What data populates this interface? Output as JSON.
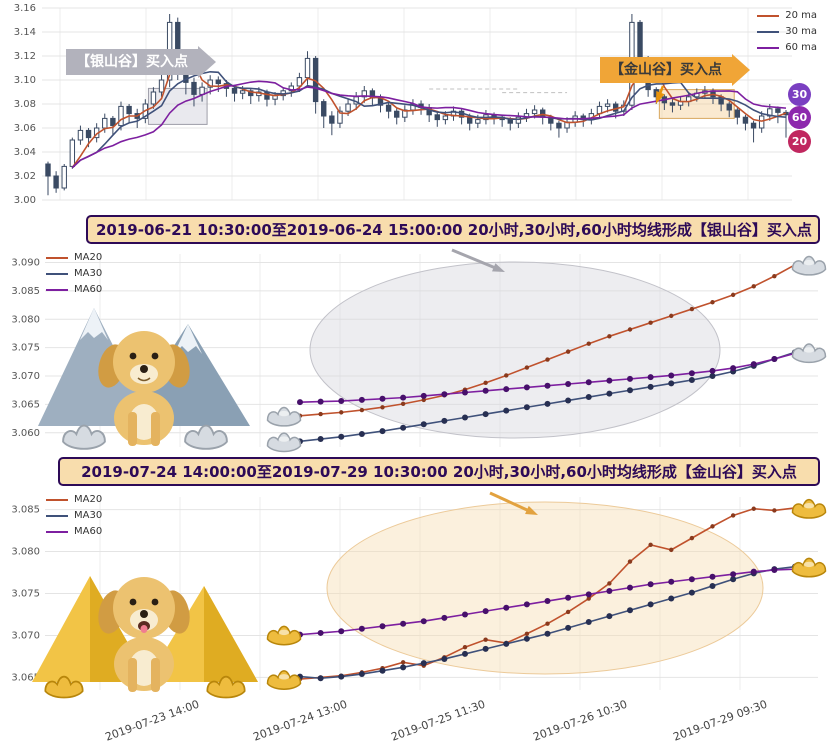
{
  "colors": {
    "ma20": "#c0522d",
    "ma30": "#3f517a",
    "ma60": "#7d1fa0",
    "candle": "#3a4a63",
    "grid": "#e4e4e4",
    "title_bg": "#f8ddad",
    "title_border": "#2d0a57",
    "banner_silver": "#b2b2bc",
    "banner_gold": "#f0a537"
  },
  "chart_data": [
    {
      "type": "candlestick",
      "title": "",
      "ylim": [
        3.0,
        3.16
      ],
      "y_ticks": [
        3.0,
        3.02,
        3.04,
        3.06,
        3.08,
        3.1,
        3.12,
        3.14,
        3.16
      ],
      "legend": [
        {
          "label": "20 ma",
          "color": "#c0522d"
        },
        {
          "label": "30 ma",
          "color": "#3f517a"
        },
        {
          "label": "60 ma",
          "color": "#7d1fa0"
        }
      ],
      "badges": [
        {
          "label": "30",
          "color": "#7a3fc1"
        },
        {
          "label": "60",
          "color": "#8d28ad"
        },
        {
          "label": "20",
          "color": "#c0275f"
        }
      ],
      "banners": [
        {
          "text": "【银山谷】买入点",
          "color": "#b2b2bc"
        },
        {
          "text": "【金山谷】买入点",
          "color": "#f0a537"
        }
      ],
      "highlight_boxes": [
        {
          "label": "silver-valley-region",
          "i0": 13,
          "i1": 19,
          "p0": 3.063,
          "p1": 3.093,
          "fill": "#c9c9d4",
          "stroke": "#9d9da8"
        },
        {
          "label": "gold-valley-region",
          "i0": 76,
          "i1": 84,
          "p0": 3.068,
          "p1": 3.092,
          "fill": "#f3c98a",
          "stroke": "#d8a75f"
        }
      ],
      "dashed_segments": [
        {
          "i0": 47,
          "i1": 58,
          "price": 3.0925
        },
        {
          "i0": 56,
          "i1": 64,
          "price": 3.0895
        }
      ],
      "candles": [
        [
          3.03,
          3.032,
          3.004,
          3.02
        ],
        [
          3.02,
          3.024,
          3.006,
          3.01
        ],
        [
          3.01,
          3.03,
          3.008,
          3.028
        ],
        [
          3.028,
          3.052,
          3.026,
          3.05
        ],
        [
          3.05,
          3.062,
          3.046,
          3.058
        ],
        [
          3.058,
          3.06,
          3.044,
          3.052
        ],
        [
          3.052,
          3.064,
          3.048,
          3.06
        ],
        [
          3.06,
          3.072,
          3.056,
          3.068
        ],
        [
          3.068,
          3.07,
          3.054,
          3.062
        ],
        [
          3.062,
          3.082,
          3.058,
          3.078
        ],
        [
          3.078,
          3.08,
          3.064,
          3.072
        ],
        [
          3.072,
          3.076,
          3.06,
          3.068
        ],
        [
          3.068,
          3.084,
          3.064,
          3.08
        ],
        [
          3.08,
          3.094,
          3.076,
          3.09
        ],
        [
          3.09,
          3.106,
          3.086,
          3.1
        ],
        [
          3.1,
          3.155,
          3.094,
          3.148
        ],
        [
          3.148,
          3.152,
          3.1,
          3.12
        ],
        [
          3.12,
          3.124,
          3.088,
          3.098
        ],
        [
          3.098,
          3.102,
          3.078,
          3.088
        ],
        [
          3.088,
          3.098,
          3.082,
          3.094
        ],
        [
          3.094,
          3.104,
          3.088,
          3.1
        ],
        [
          3.1,
          3.103,
          3.09,
          3.097
        ],
        [
          3.097,
          3.1,
          3.086,
          3.093
        ],
        [
          3.093,
          3.096,
          3.082,
          3.089
        ],
        [
          3.089,
          3.095,
          3.084,
          3.091
        ],
        [
          3.091,
          3.093,
          3.08,
          3.087
        ],
        [
          3.087,
          3.094,
          3.082,
          3.09
        ],
        [
          3.09,
          3.092,
          3.078,
          3.084
        ],
        [
          3.084,
          3.09,
          3.079,
          3.087
        ],
        [
          3.087,
          3.094,
          3.083,
          3.091
        ],
        [
          3.091,
          3.098,
          3.086,
          3.095
        ],
        [
          3.095,
          3.106,
          3.09,
          3.102
        ],
        [
          3.102,
          3.124,
          3.096,
          3.118
        ],
        [
          3.118,
          3.12,
          3.072,
          3.082
        ],
        [
          3.082,
          3.084,
          3.06,
          3.07
        ],
        [
          3.07,
          3.074,
          3.054,
          3.064
        ],
        [
          3.064,
          3.078,
          3.06,
          3.074
        ],
        [
          3.074,
          3.084,
          3.07,
          3.08
        ],
        [
          3.08,
          3.09,
          3.075,
          3.086
        ],
        [
          3.086,
          3.095,
          3.081,
          3.091
        ],
        [
          3.091,
          3.093,
          3.079,
          3.085
        ],
        [
          3.085,
          3.088,
          3.073,
          3.079
        ],
        [
          3.079,
          3.082,
          3.068,
          3.074
        ],
        [
          3.074,
          3.077,
          3.063,
          3.069
        ],
        [
          3.069,
          3.079,
          3.065,
          3.075
        ],
        [
          3.075,
          3.084,
          3.071,
          3.08
        ],
        [
          3.08,
          3.083,
          3.071,
          3.077
        ],
        [
          3.077,
          3.08,
          3.065,
          3.071
        ],
        [
          3.071,
          3.074,
          3.061,
          3.067
        ],
        [
          3.067,
          3.074,
          3.063,
          3.07
        ],
        [
          3.07,
          3.078,
          3.066,
          3.074
        ],
        [
          3.074,
          3.076,
          3.063,
          3.069
        ],
        [
          3.069,
          3.072,
          3.058,
          3.064
        ],
        [
          3.064,
          3.071,
          3.06,
          3.067
        ],
        [
          3.067,
          3.075,
          3.063,
          3.071
        ],
        [
          3.071,
          3.073,
          3.063,
          3.069
        ],
        [
          3.069,
          3.071,
          3.061,
          3.067
        ],
        [
          3.067,
          3.069,
          3.058,
          3.064
        ],
        [
          3.064,
          3.073,
          3.06,
          3.069
        ],
        [
          3.069,
          3.076,
          3.065,
          3.072
        ],
        [
          3.072,
          3.079,
          3.068,
          3.075
        ],
        [
          3.075,
          3.077,
          3.063,
          3.069
        ],
        [
          3.069,
          3.071,
          3.058,
          3.064
        ],
        [
          3.064,
          3.066,
          3.052,
          3.06
        ],
        [
          3.06,
          3.069,
          3.056,
          3.065
        ],
        [
          3.065,
          3.074,
          3.061,
          3.07
        ],
        [
          3.07,
          3.072,
          3.061,
          3.067
        ],
        [
          3.067,
          3.076,
          3.063,
          3.072
        ],
        [
          3.072,
          3.082,
          3.068,
          3.078
        ],
        [
          3.078,
          3.084,
          3.073,
          3.08
        ],
        [
          3.08,
          3.082,
          3.068,
          3.074
        ],
        [
          3.074,
          3.083,
          3.07,
          3.079
        ],
        [
          3.079,
          3.155,
          3.075,
          3.148
        ],
        [
          3.148,
          3.15,
          3.11,
          3.118
        ],
        [
          3.118,
          3.12,
          3.086,
          3.092
        ],
        [
          3.092,
          3.094,
          3.08,
          3.086
        ],
        [
          3.086,
          3.088,
          3.075,
          3.081
        ],
        [
          3.081,
          3.084,
          3.073,
          3.079
        ],
        [
          3.079,
          3.086,
          3.075,
          3.082
        ],
        [
          3.082,
          3.09,
          3.078,
          3.086
        ],
        [
          3.086,
          3.093,
          3.082,
          3.089
        ],
        [
          3.089,
          3.095,
          3.085,
          3.091
        ],
        [
          3.091,
          3.093,
          3.08,
          3.086
        ],
        [
          3.086,
          3.088,
          3.074,
          3.08
        ],
        [
          3.08,
          3.082,
          3.069,
          3.075
        ],
        [
          3.075,
          3.077,
          3.063,
          3.069
        ],
        [
          3.069,
          3.071,
          3.058,
          3.064
        ],
        [
          3.064,
          3.066,
          3.048,
          3.06
        ],
        [
          3.06,
          3.074,
          3.056,
          3.07
        ],
        [
          3.07,
          3.08,
          3.066,
          3.076
        ],
        [
          3.076,
          3.078,
          3.064,
          3.073
        ],
        [
          3.073,
          3.075,
          3.052,
          3.071
        ]
      ]
    },
    {
      "type": "line",
      "title": "2019-06-21 10:30:00至2019-06-24 15:00:00 20小时,30小时,60小时均线形成【银山谷】买入点",
      "ylim": [
        3.0575,
        3.0915
      ],
      "y_ticks": [
        3.06,
        3.065,
        3.07,
        3.075,
        3.08,
        3.085,
        3.09
      ],
      "legend": [
        {
          "label": "MA20",
          "color": "#c0522d"
        },
        {
          "label": "MA30",
          "color": "#3f517a"
        },
        {
          "label": "MA60",
          "color": "#7d1fa0"
        }
      ],
      "marker_kind": "silver",
      "ellipse": {
        "fill": "#d8d8de",
        "stroke": "#c2c2c9"
      },
      "markers": [
        {
          "series": "MA20",
          "pos": "start"
        },
        {
          "series": "MA30",
          "pos": "start"
        },
        {
          "series": "MA20",
          "pos": "end"
        },
        {
          "series": "MA30",
          "pos": "end"
        }
      ],
      "series": [
        {
          "name": "MA20",
          "color": "#c0522d",
          "dot": "#8a3a1d",
          "values": [
            3.063,
            3.0633,
            3.0636,
            3.064,
            3.0645,
            3.0651,
            3.0658,
            3.0666,
            3.0676,
            3.0688,
            3.0701,
            3.0715,
            3.0729,
            3.0743,
            3.0757,
            3.077,
            3.0782,
            3.0794,
            3.0806,
            3.0818,
            3.083,
            3.0843,
            3.0858,
            3.0876,
            3.0896
          ]
        },
        {
          "name": "MA30",
          "color": "#3f517a",
          "dot": "#272f52",
          "values": [
            3.0585,
            3.0589,
            3.0593,
            3.0598,
            3.0603,
            3.0609,
            3.0615,
            3.0621,
            3.0627,
            3.0633,
            3.0639,
            3.0645,
            3.0651,
            3.0657,
            3.0663,
            3.0669,
            3.0675,
            3.0681,
            3.0687,
            3.0693,
            3.07,
            3.0708,
            3.0718,
            3.073,
            3.0742
          ]
        },
        {
          "name": "MA60",
          "color": "#7d1fa0",
          "dot": "#47106b",
          "values": [
            3.0654,
            3.0655,
            3.0656,
            3.0658,
            3.066,
            3.0662,
            3.0665,
            3.0668,
            3.0671,
            3.0674,
            3.0677,
            3.068,
            3.0683,
            3.0686,
            3.0689,
            3.0692,
            3.0695,
            3.0698,
            3.0701,
            3.0705,
            3.0709,
            3.0714,
            3.0721,
            3.073,
            3.074
          ]
        }
      ]
    },
    {
      "type": "line",
      "title": "2019-07-24 14:00:00至2019-07-29 10:30:00 20小时,30小时,60小时均线形成【金山谷】买入点",
      "ylim": [
        3.0635,
        3.0865
      ],
      "y_ticks": [
        3.065,
        3.07,
        3.075,
        3.08,
        3.085
      ],
      "x_tick_labels": [
        "2019-07-23 14:00",
        "2019-07-24 13:00",
        "2019-07-25 11:30",
        "2019-07-26 10:30",
        "2019-07-29 09:30"
      ],
      "legend": [
        {
          "label": "MA20",
          "color": "#c0522d"
        },
        {
          "label": "MA30",
          "color": "#3f517a"
        },
        {
          "label": "MA60",
          "color": "#7d1fa0"
        }
      ],
      "marker_kind": "gold",
      "ellipse": {
        "fill": "#f6ddb4",
        "stroke": "#ecca99"
      },
      "markers": [
        {
          "series": "MA60",
          "pos": "start"
        },
        {
          "series": "MA20",
          "pos": "start"
        },
        {
          "series": "MA20",
          "pos": "end"
        },
        {
          "series": "MA30",
          "pos": "end"
        }
      ],
      "series": [
        {
          "name": "MA20",
          "color": "#c0522d",
          "dot": "#8a3a1d",
          "values": [
            3.0648,
            3.065,
            3.0652,
            3.0656,
            3.0661,
            3.0668,
            3.0664,
            3.0674,
            3.0686,
            3.0695,
            3.0691,
            3.0702,
            3.0714,
            3.0728,
            3.0744,
            3.0762,
            3.0788,
            3.0808,
            3.0802,
            3.0816,
            3.083,
            3.0843,
            3.0851,
            3.0849,
            3.0852
          ]
        },
        {
          "name": "MA30",
          "color": "#3f517a",
          "dot": "#272f52",
          "values": [
            3.0651,
            3.0649,
            3.0651,
            3.0654,
            3.0658,
            3.0662,
            3.0667,
            3.0672,
            3.0678,
            3.0684,
            3.069,
            3.0696,
            3.0702,
            3.0709,
            3.0716,
            3.0723,
            3.073,
            3.0737,
            3.0744,
            3.0751,
            3.0759,
            3.0767,
            3.0774,
            3.0779,
            3.0782
          ]
        },
        {
          "name": "MA60",
          "color": "#7d1fa0",
          "dot": "#47106b",
          "values": [
            3.0701,
            3.0703,
            3.0705,
            3.0708,
            3.0711,
            3.0714,
            3.0717,
            3.0721,
            3.0725,
            3.0729,
            3.0733,
            3.0737,
            3.0741,
            3.0745,
            3.0749,
            3.0753,
            3.0757,
            3.0761,
            3.0764,
            3.0767,
            3.077,
            3.0773,
            3.0776,
            3.0778,
            3.0779
          ]
        }
      ]
    }
  ]
}
